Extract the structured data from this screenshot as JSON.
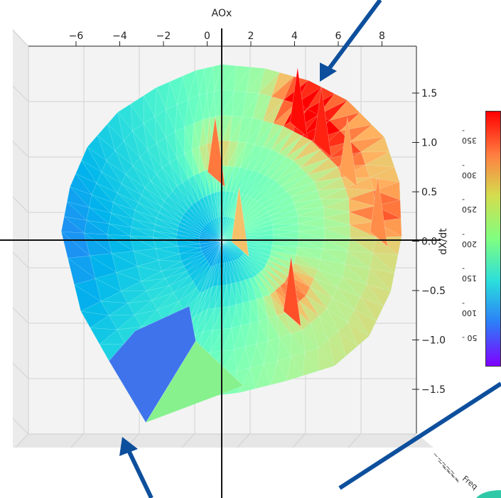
{
  "chart_data": {
    "type": "surface3d",
    "title": "AOx",
    "xlabel": "AOx",
    "ylabel": "dX/dt",
    "zlabel": "Freq",
    "x_ticks": [
      "-6",
      "-4",
      "-2",
      "0",
      "2",
      "4",
      "6",
      "8"
    ],
    "y_ticks": [
      "1.5",
      "1.0",
      "0.5",
      "0.0",
      "-0.5",
      "-1.0",
      "-1.5"
    ],
    "colorbar": {
      "colormap": "rainbow",
      "ticks": [
        "350",
        "300",
        "250",
        "200",
        "150",
        "100",
        "50"
      ],
      "range": [
        25,
        375
      ]
    },
    "grid": true,
    "surface": {
      "outline_x": [
        0.0,
        2.0,
        4.0,
        5.8,
        7.5,
        8.2,
        8.3,
        7.8,
        6.8,
        5.2,
        3.0,
        0.8,
        -1.5,
        -3.5,
        -5.2,
        -6.5,
        -7.4,
        -7.0,
        -6.2,
        -4.8,
        -3.0,
        -1.2
      ],
      "outline_y": [
        1.78,
        1.74,
        1.62,
        1.42,
        1.05,
        0.6,
        0.05,
        -0.5,
        -0.95,
        -1.25,
        -1.4,
        -1.52,
        -1.58,
        -1.82,
        -1.2,
        -0.7,
        0.1,
        0.55,
        0.95,
        1.3,
        1.55,
        1.72
      ],
      "peak_x": [
        3.5,
        4.6,
        5.8,
        3.2,
        7.2,
        -0.3,
        0.8
      ],
      "peak_y": [
        1.4,
        1.2,
        0.9,
        -0.5,
        0.3,
        0.9,
        0.2
      ],
      "peak_value": [
        370,
        360,
        300,
        340,
        310,
        320,
        280
      ]
    }
  },
  "colors": {
    "arrow": "#0d4f9c",
    "axis": "#000000",
    "pane": "#f2f2f2",
    "grid": "#cfcfcf"
  }
}
